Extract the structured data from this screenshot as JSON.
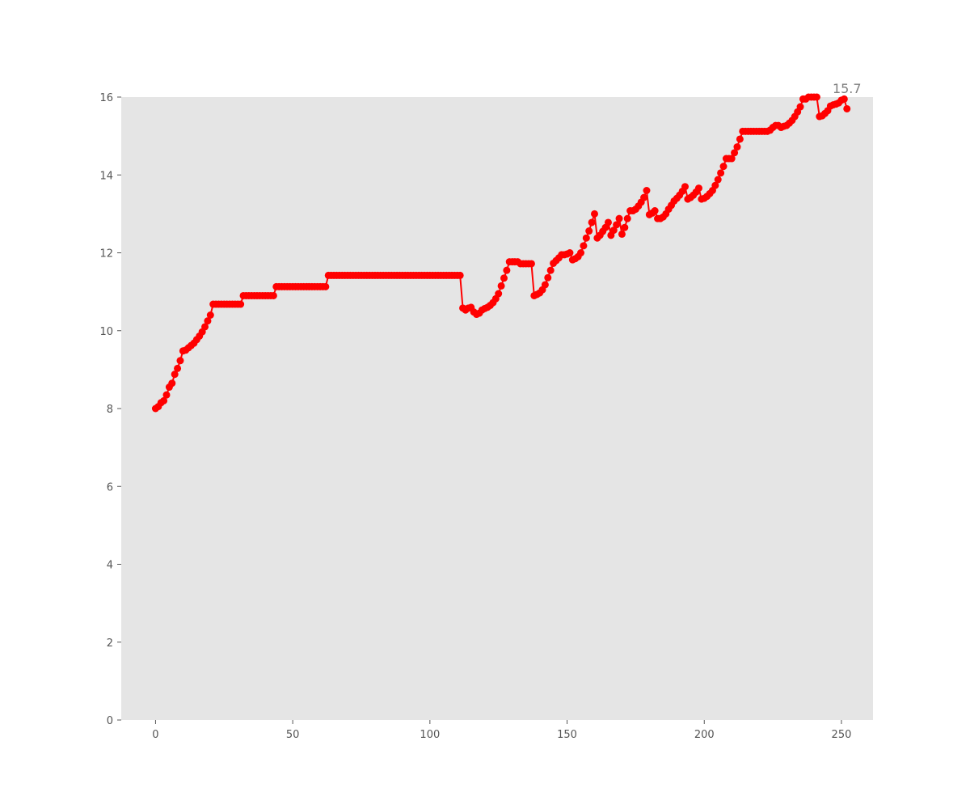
{
  "chart_data": {
    "type": "line",
    "title": "",
    "xlabel": "",
    "ylabel": "",
    "xlim": [
      -12.5,
      261.5
    ],
    "ylim": [
      0,
      16
    ],
    "xticks": [
      "0",
      "50",
      "100",
      "150",
      "200",
      "250"
    ],
    "yticks": [
      "0",
      "2",
      "4",
      "6",
      "8",
      "10",
      "12",
      "14",
      "16"
    ],
    "grid": false,
    "background": "#e5e5e5",
    "color": "#ff0000",
    "marker": "circle",
    "last_value_label": "15.7",
    "series": [
      {
        "y": [
          8.0,
          8.05,
          8.15,
          8.2,
          8.35,
          8.55,
          8.65,
          8.88,
          9.03,
          9.23,
          9.48,
          9.5,
          9.56,
          9.62,
          9.68,
          9.77,
          9.86,
          9.97,
          10.1,
          10.25,
          10.4,
          10.68,
          10.68,
          10.68,
          10.68,
          10.68,
          10.68,
          10.68,
          10.68,
          10.68,
          10.68,
          10.68,
          10.9,
          10.9,
          10.9,
          10.9,
          10.9,
          10.9,
          10.9,
          10.9,
          10.9,
          10.9,
          10.9,
          10.9,
          11.13,
          11.13,
          11.13,
          11.13,
          11.13,
          11.13,
          11.13,
          11.13,
          11.13,
          11.13,
          11.13,
          11.13,
          11.13,
          11.13,
          11.13,
          11.13,
          11.13,
          11.13,
          11.13,
          11.42,
          11.42,
          11.42,
          11.42,
          11.42,
          11.42,
          11.42,
          11.42,
          11.42,
          11.42,
          11.42,
          11.42,
          11.42,
          11.42,
          11.42,
          11.42,
          11.42,
          11.42,
          11.42,
          11.42,
          11.42,
          11.42,
          11.42,
          11.42,
          11.42,
          11.42,
          11.42,
          11.42,
          11.42,
          11.42,
          11.42,
          11.42,
          11.42,
          11.42,
          11.42,
          11.42,
          11.42,
          11.42,
          11.42,
          11.42,
          11.42,
          11.42,
          11.42,
          11.42,
          11.42,
          11.42,
          11.42,
          11.42,
          11.42,
          10.58,
          10.53,
          10.58,
          10.6,
          10.48,
          10.42,
          10.45,
          10.53,
          10.57,
          10.6,
          10.65,
          10.72,
          10.82,
          10.95,
          11.15,
          11.35,
          11.55,
          11.77,
          11.77,
          11.77,
          11.77,
          11.72,
          11.72,
          11.72,
          11.72,
          11.72,
          10.9,
          10.93,
          10.97,
          11.05,
          11.18,
          11.36,
          11.55,
          11.73,
          11.8,
          11.87,
          11.95,
          11.95,
          11.97,
          12.0,
          11.82,
          11.85,
          11.9,
          12.0,
          12.18,
          12.38,
          12.56,
          12.78,
          13.0,
          12.38,
          12.45,
          12.55,
          12.65,
          12.78,
          12.45,
          12.58,
          12.72,
          12.88,
          12.48,
          12.65,
          12.88,
          13.08,
          13.08,
          13.12,
          13.2,
          13.3,
          13.42,
          13.6,
          12.98,
          13.02,
          13.08,
          12.88,
          12.88,
          12.92,
          13.0,
          13.12,
          13.22,
          13.33,
          13.4,
          13.48,
          13.58,
          13.7,
          13.38,
          13.42,
          13.48,
          13.56,
          13.66,
          13.38,
          13.4,
          13.45,
          13.52,
          13.6,
          13.73,
          13.88,
          14.05,
          14.22,
          14.42,
          14.42,
          14.42,
          14.57,
          14.72,
          14.92,
          15.12,
          15.12,
          15.12,
          15.12,
          15.12,
          15.12,
          15.12,
          15.12,
          15.12,
          15.12,
          15.15,
          15.22,
          15.27,
          15.27,
          15.22,
          15.25,
          15.27,
          15.33,
          15.4,
          15.5,
          15.62,
          15.75,
          15.95,
          15.95,
          16.0,
          16.0,
          16.0,
          16.0,
          15.5,
          15.52,
          15.58,
          15.65,
          15.77,
          15.8,
          15.82,
          15.85,
          15.92,
          15.95,
          15.7
        ]
      }
    ]
  }
}
